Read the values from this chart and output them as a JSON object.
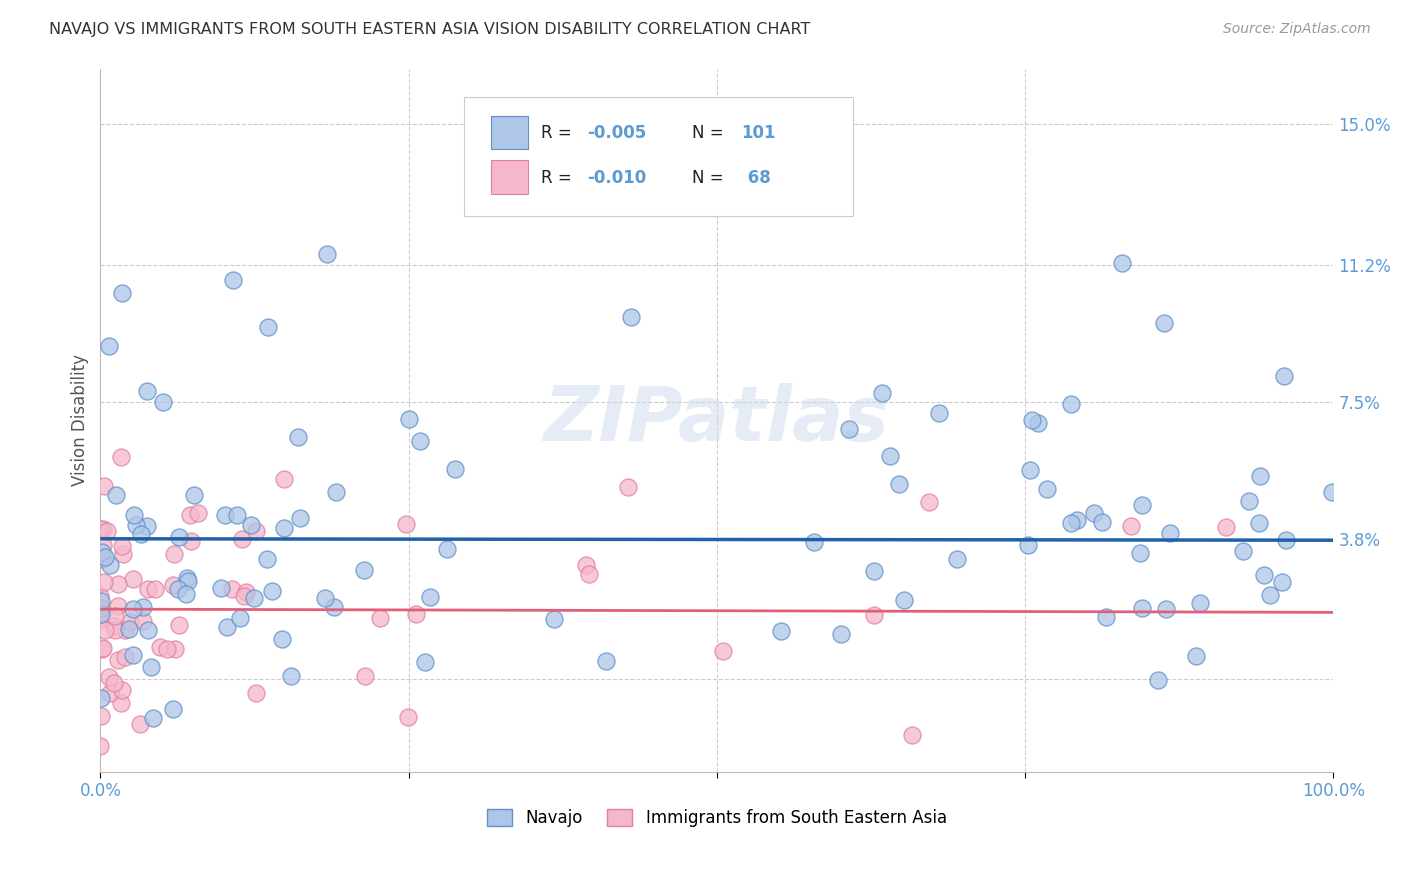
{
  "title": "NAVAJO VS IMMIGRANTS FROM SOUTH EASTERN ASIA VISION DISABILITY CORRELATION CHART",
  "source": "Source: ZipAtlas.com",
  "ylabel": "Vision Disability",
  "watermark": "ZIPatlas",
  "navajo_line_color": "#2060a8",
  "immigrants_line_color": "#e0607a",
  "navajo_dot_color": "#aec6e8",
  "immigrants_dot_color": "#f5b8ca",
  "navajo_dot_edge": "#6090c8",
  "immigrants_dot_edge": "#e080a0",
  "xlim": [
    0.0,
    1.0
  ],
  "ylim": [
    -0.025,
    0.165
  ],
  "ytick_vals": [
    0.0,
    0.038,
    0.075,
    0.112,
    0.15
  ],
  "ytick_labels": [
    "",
    "3.8%",
    "7.5%",
    "11.2%",
    "15.0%"
  ],
  "background_color": "#ffffff",
  "grid_color": "#cccccc",
  "title_color": "#333333",
  "tick_color": "#5b9bd5",
  "legend_blue_color": "#aec6e8",
  "legend_blue_edge": "#6090c8",
  "legend_pink_color": "#f5b8ca",
  "legend_pink_edge": "#e080a0",
  "nav_R": -0.005,
  "nav_N": 101,
  "imm_R": -0.01,
  "imm_N": 68
}
